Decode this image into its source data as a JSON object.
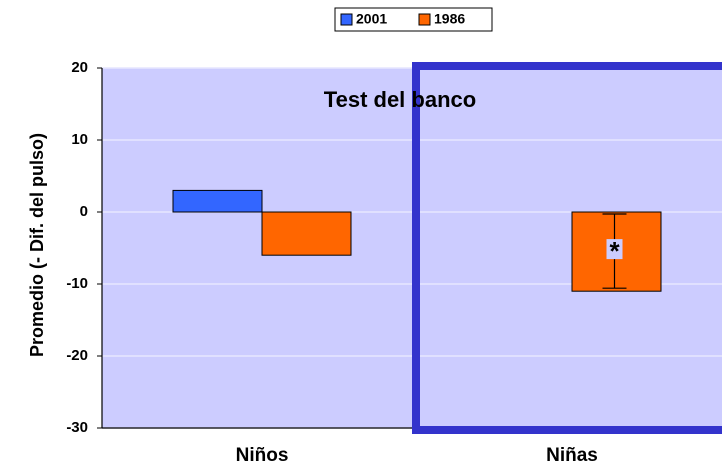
{
  "chart_data": {
    "type": "bar",
    "title": "Test del banco",
    "y_label": "Promedio (- Dif. del pulso)",
    "categories": [
      "Niños",
      "Niñas"
    ],
    "series": [
      {
        "name": "2001",
        "color": "#3366ff",
        "values": [
          3,
          0
        ]
      },
      {
        "name": "1986",
        "color": "#ff6600",
        "values": [
          -6,
          -11
        ]
      }
    ],
    "annotation": "*",
    "ylim": [
      -30,
      20
    ],
    "yticks": [
      -30,
      -20,
      -10,
      0,
      10,
      20
    ],
    "grid": true,
    "legend": "top"
  }
}
